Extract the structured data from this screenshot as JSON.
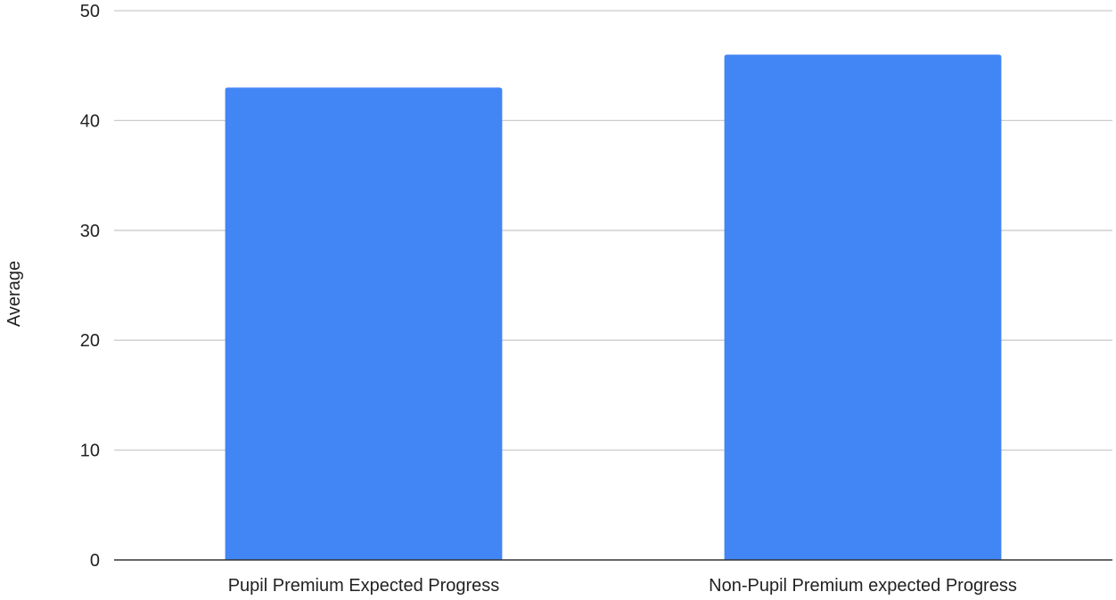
{
  "chart_data": {
    "type": "bar",
    "title": "",
    "xlabel": "",
    "ylabel": "Average",
    "categories": [
      "Pupil Premium Expected Progress",
      "Non-Pupil Premium expected Progress"
    ],
    "values": [
      43,
      46
    ],
    "ylim": [
      0,
      50
    ],
    "yticks": [
      "0",
      "10",
      "20",
      "30",
      "40",
      "50"
    ],
    "grid": true,
    "legend": "none",
    "colors": {
      "bar": "#4285f4",
      "grid": "#cccccc",
      "axis": "#333333",
      "text": "#222222"
    }
  }
}
